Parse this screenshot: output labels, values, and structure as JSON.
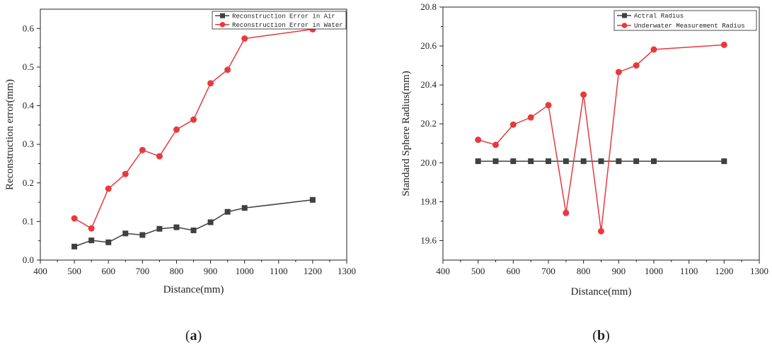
{
  "chart_data": [
    {
      "type": "line",
      "panel_label": "a",
      "title": "",
      "xlabel": "Distance(mm)",
      "ylabel": "Reconstruction error(mm)",
      "xlim": [
        400,
        1300
      ],
      "ylim": [
        0.0,
        0.65
      ],
      "xticks": [
        400,
        500,
        600,
        700,
        800,
        900,
        1000,
        1100,
        1200,
        1300
      ],
      "yticks": [
        0.0,
        0.1,
        0.2,
        0.3,
        0.4,
        0.5,
        0.6
      ],
      "ytick_labels": [
        "0.0",
        "0.1",
        "0.2",
        "0.3",
        "0.4",
        "0.5",
        "0.6"
      ],
      "legend_position": "top-right",
      "grid": false,
      "series": [
        {
          "name": "Reconstruction Error in Air",
          "color": "#404040",
          "marker": "square",
          "x": [
            500,
            550,
            600,
            650,
            700,
            750,
            800,
            850,
            900,
            950,
            1000,
            1200
          ],
          "values": [
            0.035,
            0.051,
            0.046,
            0.069,
            0.065,
            0.081,
            0.085,
            0.077,
            0.098,
            0.125,
            0.135,
            0.156
          ]
        },
        {
          "name": "Reconstruction Error in Water",
          "color": "#e8393d",
          "marker": "circle",
          "x": [
            500,
            550,
            600,
            650,
            700,
            750,
            800,
            850,
            900,
            950,
            1000,
            1200
          ],
          "values": [
            0.108,
            0.082,
            0.185,
            0.223,
            0.285,
            0.269,
            0.338,
            0.364,
            0.458,
            0.493,
            0.574,
            0.598
          ]
        }
      ]
    },
    {
      "type": "line",
      "panel_label": "b",
      "title": "",
      "xlabel": "Distance(mm)",
      "ylabel": "Standard Sphere Radius(mm)",
      "xlim": [
        400,
        1300
      ],
      "ylim": [
        19.5,
        20.8
      ],
      "xticks": [
        400,
        500,
        600,
        700,
        800,
        900,
        1000,
        1100,
        1200,
        1300
      ],
      "yticks": [
        19.6,
        19.8,
        20.0,
        20.2,
        20.4,
        20.6,
        20.8
      ],
      "ytick_labels": [
        "19.6",
        "19.8",
        "20.0",
        "20.2",
        "20.4",
        "20.6",
        "20.8"
      ],
      "legend_position": "top-right",
      "grid": false,
      "series": [
        {
          "name": "Actral Radius",
          "color": "#404040",
          "marker": "square",
          "x": [
            500,
            550,
            600,
            650,
            700,
            750,
            800,
            850,
            900,
            950,
            1000,
            1200
          ],
          "values": [
            20.008,
            20.008,
            20.008,
            20.008,
            20.008,
            20.008,
            20.008,
            20.008,
            20.008,
            20.008,
            20.008,
            20.008
          ]
        },
        {
          "name": "Underwater Measurement Radius",
          "color": "#e8393d",
          "marker": "circle",
          "x": [
            500,
            550,
            600,
            650,
            700,
            750,
            800,
            850,
            900,
            950,
            1000,
            1200
          ],
          "values": [
            20.118,
            20.092,
            20.196,
            20.233,
            20.296,
            19.742,
            20.35,
            19.648,
            20.466,
            20.5,
            20.582,
            20.606
          ]
        }
      ]
    }
  ]
}
